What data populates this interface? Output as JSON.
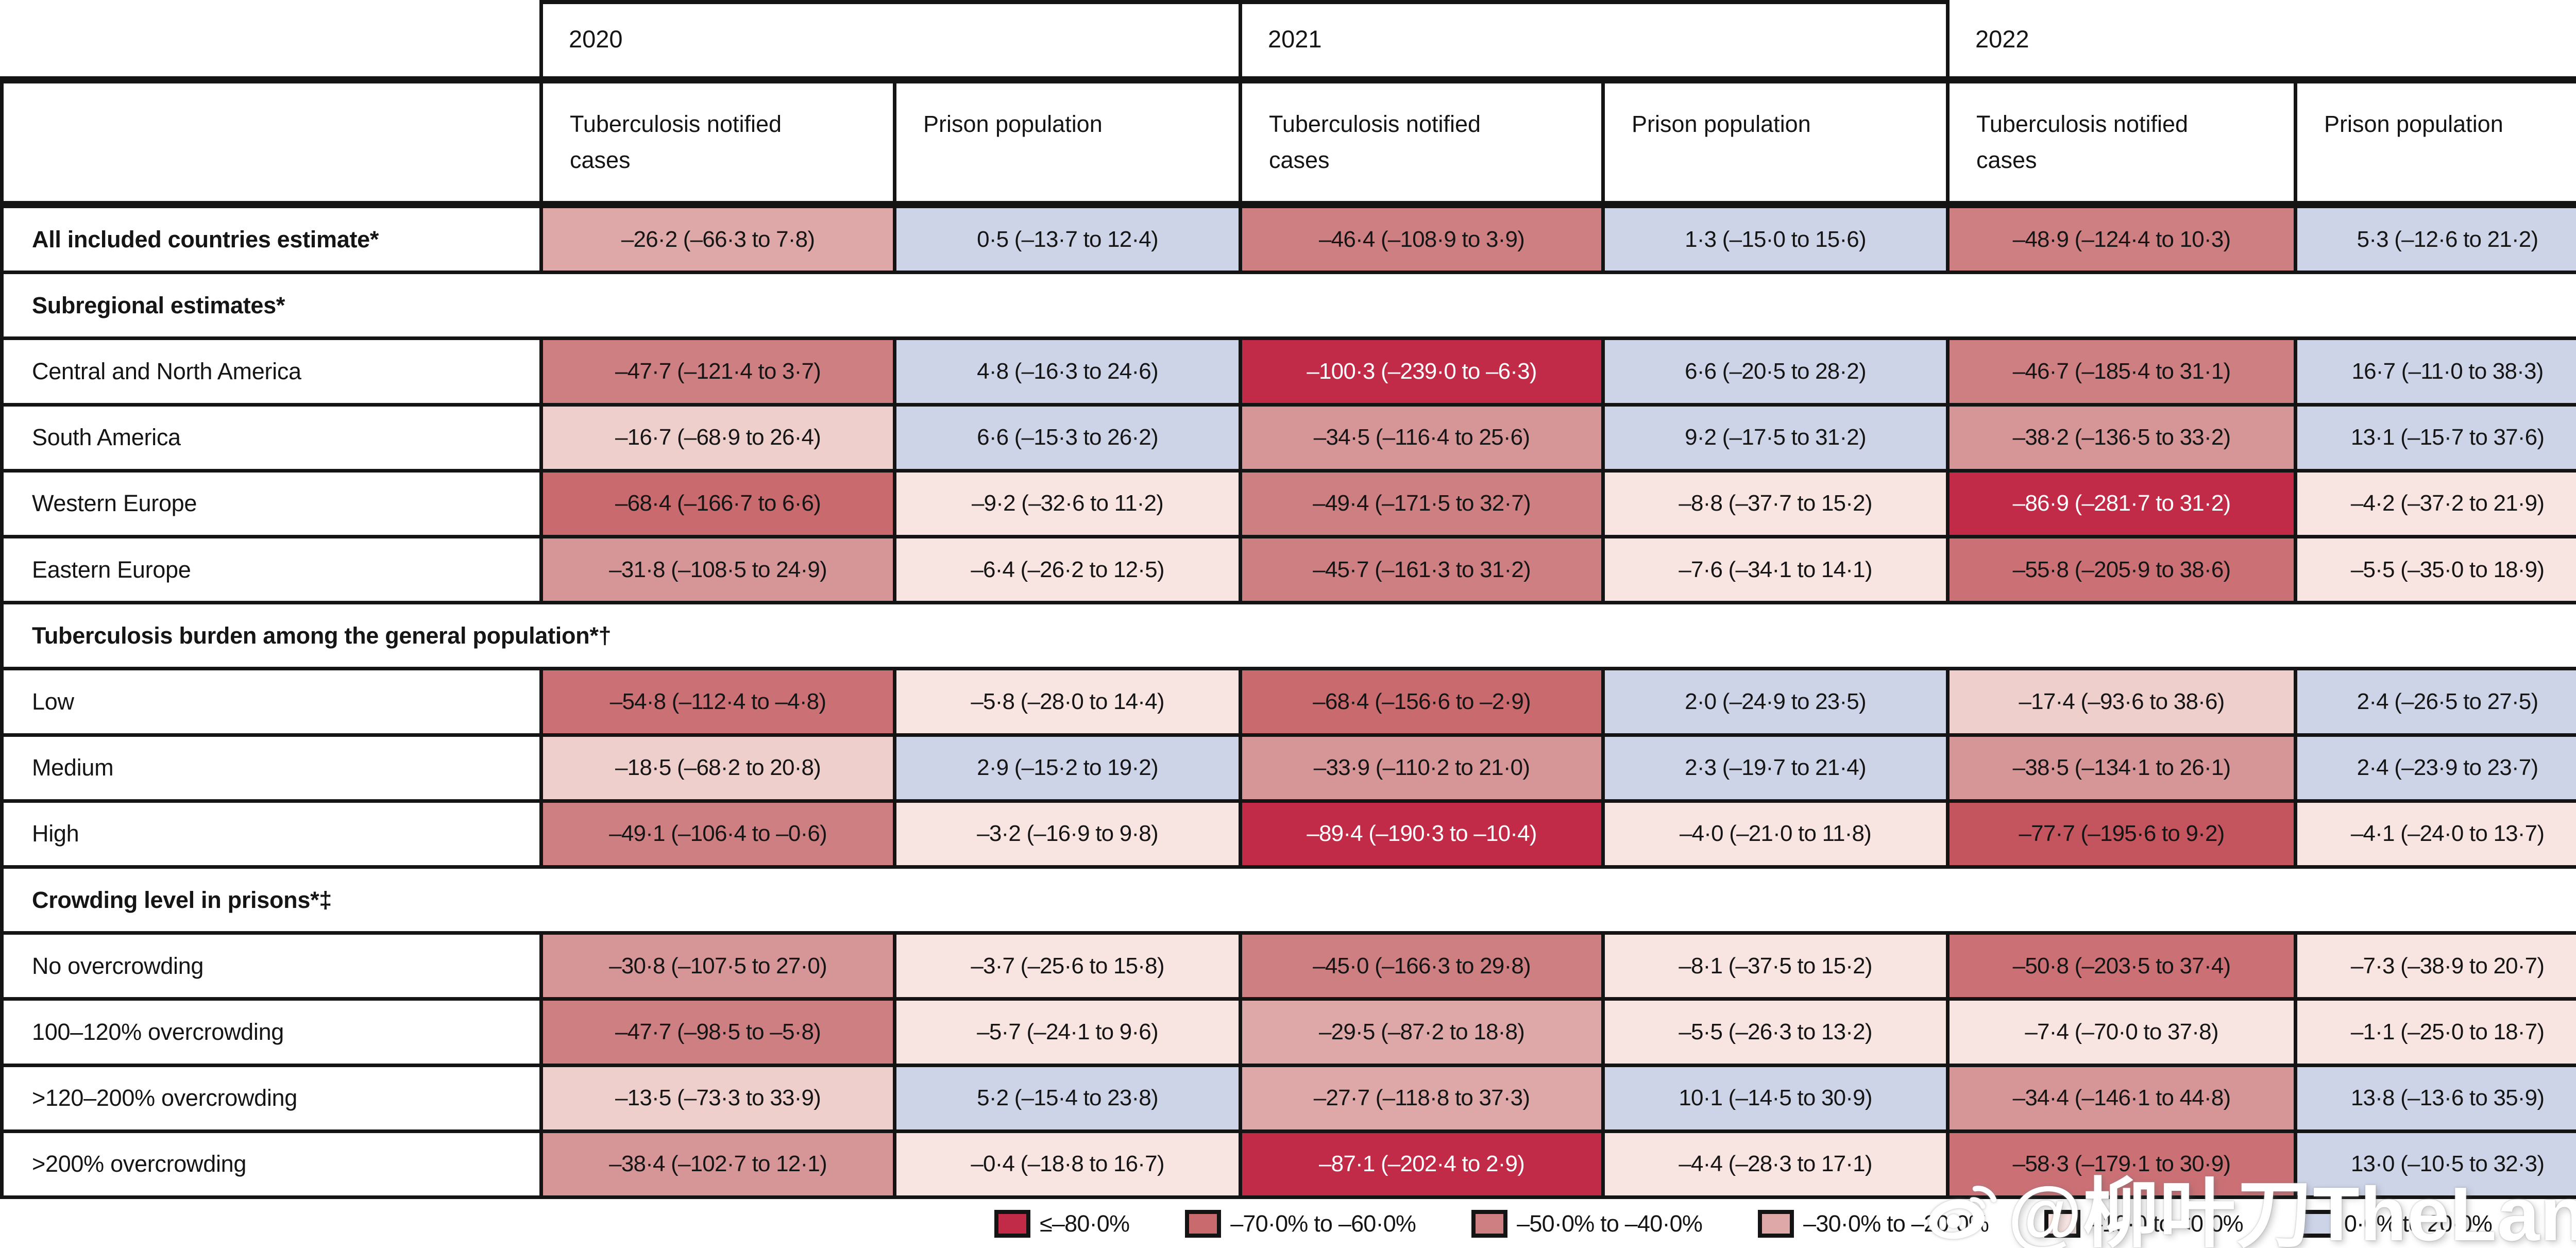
{
  "years": [
    "2020",
    "2021",
    "2022"
  ],
  "subheaders": [
    "Tuberculosis notified cases",
    "Prison population"
  ],
  "palette": {
    "m80": "#C22B47",
    "m75": "#C4545E",
    "m70": "#C96A6F",
    "m60": "#CB7176",
    "m50": "#CE7F82",
    "m40": "#D69698",
    "m30": "#DDA8A7",
    "m20": "#EFCFCC",
    "m10": "#F8E4E1",
    "blue": "#CDD4E8"
  },
  "rows": [
    {
      "type": "data",
      "label": "All included countries estimate*",
      "bold": true,
      "cells": [
        {
          "text": "–26·2 (–66·3 to 7·8)",
          "bin": "m30"
        },
        {
          "text": "0·5 (–13·7 to 12·4)",
          "bin": "blue"
        },
        {
          "text": "–46·4 (–108·9 to 3·9)",
          "bin": "m50"
        },
        {
          "text": "1·3 (–15·0 to 15·6)",
          "bin": "blue"
        },
        {
          "text": "–48·9 (–124·4 to 10·3)",
          "bin": "m50"
        },
        {
          "text": "5·3 (–12·6 to 21·2)",
          "bin": "blue"
        }
      ]
    },
    {
      "type": "section",
      "label": "Subregional estimates*"
    },
    {
      "type": "data",
      "label": "Central and North America",
      "bold": false,
      "cells": [
        {
          "text": "–47·7 (–121·4 to 3·7)",
          "bin": "m50"
        },
        {
          "text": "4·8 (–16·3 to 24·6)",
          "bin": "blue"
        },
        {
          "text": "–100·3 (–239·0 to –6·3)",
          "bin": "m80"
        },
        {
          "text": "6·6 (–20·5 to 28·2)",
          "bin": "blue"
        },
        {
          "text": "–46·7 (–185·4 to 31·1)",
          "bin": "m50"
        },
        {
          "text": "16·7 (–11·0 to 38·3)",
          "bin": "blue"
        }
      ]
    },
    {
      "type": "data",
      "label": "South America",
      "bold": false,
      "cells": [
        {
          "text": "–16·7 (–68·9 to 26·4)",
          "bin": "m20"
        },
        {
          "text": "6·6 (–15·3 to 26·2)",
          "bin": "blue"
        },
        {
          "text": "–34·5 (–116·4 to 25·6)",
          "bin": "m40"
        },
        {
          "text": "9·2 (–17·5 to 31·2)",
          "bin": "blue"
        },
        {
          "text": "–38·2 (–136·5 to 33·2)",
          "bin": "m40"
        },
        {
          "text": "13·1 (–15·7 to 37·6)",
          "bin": "blue"
        }
      ]
    },
    {
      "type": "data",
      "label": "Western Europe",
      "bold": false,
      "cells": [
        {
          "text": "–68·4 (–166·7 to 6·6)",
          "bin": "m70"
        },
        {
          "text": "–9·2 (–32·6 to 11·2)",
          "bin": "m10"
        },
        {
          "text": "–49·4 (–171·5 to 32·7)",
          "bin": "m50"
        },
        {
          "text": "–8·8 (–37·7 to 15·2)",
          "bin": "m10"
        },
        {
          "text": "–86·9 (–281·7 to 31·2)",
          "bin": "m80"
        },
        {
          "text": "–4·2 (–37·2 to 21·9)",
          "bin": "m10"
        }
      ]
    },
    {
      "type": "data",
      "label": "Eastern Europe",
      "bold": false,
      "cells": [
        {
          "text": "–31·8 (–108·5 to 24·9)",
          "bin": "m40"
        },
        {
          "text": "–6·4 (–26·2 to 12·5)",
          "bin": "m10"
        },
        {
          "text": "–45·7 (–161·3 to 31·2)",
          "bin": "m50"
        },
        {
          "text": "–7·6 (–34·1 to 14·1)",
          "bin": "m10"
        },
        {
          "text": "–55·8 (–205·9 to 38·6)",
          "bin": "m60"
        },
        {
          "text": "–5·5 (–35·0 to 18·9)",
          "bin": "m10"
        }
      ]
    },
    {
      "type": "section",
      "label": "Tuberculosis burden among the general population*†"
    },
    {
      "type": "data",
      "label": "Low",
      "bold": false,
      "cells": [
        {
          "text": "–54·8 (–112·4 to –4·8)",
          "bin": "m60"
        },
        {
          "text": "–5·8 (–28·0 to 14·4)",
          "bin": "m10"
        },
        {
          "text": "–68·4 (–156·6 to –2·9)",
          "bin": "m70"
        },
        {
          "text": "2·0 (–24·9 to 23·5)",
          "bin": "blue"
        },
        {
          "text": "–17·4 (–93·6 to 38·6)",
          "bin": "m20"
        },
        {
          "text": "2·4 (–26·5 to 27·5)",
          "bin": "blue"
        }
      ]
    },
    {
      "type": "data",
      "label": "Medium",
      "bold": false,
      "cells": [
        {
          "text": "–18·5 (–68·2 to 20·8)",
          "bin": "m20"
        },
        {
          "text": "2·9 (–15·2 to 19·2)",
          "bin": "blue"
        },
        {
          "text": "–33·9 (–110·2 to 21·0)",
          "bin": "m40"
        },
        {
          "text": "2·3 (–19·7 to 21·4)",
          "bin": "blue"
        },
        {
          "text": "–38·5 (–134·1 to 26·1)",
          "bin": "m40"
        },
        {
          "text": "2·4 (–23·9 to 23·7)",
          "bin": "blue"
        }
      ]
    },
    {
      "type": "data",
      "label": "High",
      "bold": false,
      "cells": [
        {
          "text": "–49·1 (–106·4 to –0·6)",
          "bin": "m50"
        },
        {
          "text": "–3·2 (–16·9 to 9·8)",
          "bin": "m10"
        },
        {
          "text": "–89·4 (–190·3 to –10·4)",
          "bin": "m80"
        },
        {
          "text": "–4·0 (–21·0 to 11·8)",
          "bin": "m10"
        },
        {
          "text": "–77·7 (–195·6 to 9·2)",
          "bin": "m75"
        },
        {
          "text": "–4·1 (–24·0 to 13·7)",
          "bin": "m10"
        }
      ]
    },
    {
      "type": "section",
      "label": "Crowding level in prisons*‡"
    },
    {
      "type": "data",
      "label": "No overcrowding",
      "bold": false,
      "cells": [
        {
          "text": "–30·8 (–107·5 to 27·0)",
          "bin": "m40"
        },
        {
          "text": "–3·7 (–25·6 to 15·8)",
          "bin": "m10"
        },
        {
          "text": "–45·0 (–166·3 to 29·8)",
          "bin": "m50"
        },
        {
          "text": "–8·1 (–37·5 to 15·2)",
          "bin": "m10"
        },
        {
          "text": "–50·8 (–203·5 to 37·4)",
          "bin": "m60"
        },
        {
          "text": "–7·3 (–38·9 to 20·7)",
          "bin": "m10"
        }
      ]
    },
    {
      "type": "data",
      "label": "100–120% overcrowding",
      "bold": false,
      "cells": [
        {
          "text": "–47·7 (–98·5 to –5·8)",
          "bin": "m50"
        },
        {
          "text": "–5·7 (–24·1 to 9·6)",
          "bin": "m10"
        },
        {
          "text": "–29·5 (–87·2 to 18·8)",
          "bin": "m30"
        },
        {
          "text": "–5·5 (–26·3 to 13·2)",
          "bin": "m10"
        },
        {
          "text": "–7·4 (–70·0 to 37·8)",
          "bin": "m10"
        },
        {
          "text": "–1·1 (–25·0 to 18·7)",
          "bin": "m10"
        }
      ]
    },
    {
      "type": "data",
      "label": ">120–200% overcrowding",
      "bold": false,
      "cells": [
        {
          "text": "–13·5 (–73·3 to 33·9)",
          "bin": "m20"
        },
        {
          "text": "5·2 (–15·4 to 23·8)",
          "bin": "blue"
        },
        {
          "text": "–27·7 (–118·8 to 37·3)",
          "bin": "m30"
        },
        {
          "text": "10·1 (–14·5 to 30·9)",
          "bin": "blue"
        },
        {
          "text": "–34·4 (–146·1 to 44·8)",
          "bin": "m40"
        },
        {
          "text": "13·8 (–13·6 to 35·9)",
          "bin": "blue"
        }
      ]
    },
    {
      "type": "data",
      "label": ">200% overcrowding",
      "bold": false,
      "cells": [
        {
          "text": "–38·4 (–102·7 to 12·1)",
          "bin": "m40"
        },
        {
          "text": "–0·4 (–18·8 to 16·7)",
          "bin": "m10"
        },
        {
          "text": "–87·1 (–202·4 to 2·9)",
          "bin": "m80"
        },
        {
          "text": "–4·4 (–28·3 to 17·1)",
          "bin": "m10"
        },
        {
          "text": "–58·3 (–179·1 to 30·9)",
          "bin": "m60"
        },
        {
          "text": "13·0 (–10·5 to 32·3)",
          "bin": "blue"
        }
      ]
    }
  ],
  "legend": {
    "items": [
      {
        "label": "≤–80·0%",
        "bin": "m80"
      },
      {
        "label": "–70·0% to –60·0%",
        "bin": "m70"
      },
      {
        "label": "–50·0% to –40·0%",
        "bin": "m50"
      },
      {
        "label": "–30·0% to –20·0%",
        "bin": "m30"
      },
      {
        "label": "–10·0 to <0·0%",
        "bin": "m10"
      },
      {
        "label": "0·0% to 20·0%",
        "bin": "blue"
      }
    ]
  },
  "watermark": {
    "text": "@柳叶刀TheLancet",
    "icon": "weibo-icon"
  },
  "chart_data": {
    "type": "heatmap",
    "columns": [
      "2020 Tuberculosis notified cases",
      "2020 Prison population",
      "2021 Tuberculosis notified cases",
      "2021 Prison population",
      "2022 Tuberculosis notified cases",
      "2022 Prison population"
    ],
    "row_groups": [
      {
        "name": "",
        "rows": [
          "All included countries estimate*"
        ]
      },
      {
        "name": "Subregional estimates*",
        "rows": [
          "Central and North America",
          "South America",
          "Western Europe",
          "Eastern Europe"
        ]
      },
      {
        "name": "Tuberculosis burden among the general population*†",
        "rows": [
          "Low",
          "Medium",
          "High"
        ]
      },
      {
        "name": "Crowding level in prisons*‡",
        "rows": [
          "No overcrowding",
          "100–120% overcrowding",
          ">120–200% overcrowding",
          ">200% overcrowding"
        ]
      }
    ],
    "rows": [
      "All included countries estimate*",
      "Central and North America",
      "South America",
      "Western Europe",
      "Eastern Europe",
      "Low",
      "Medium",
      "High",
      "No overcrowding",
      "100–120% overcrowding",
      ">120–200% overcrowding",
      ">200% overcrowding"
    ],
    "values": [
      [
        -26.2,
        0.5,
        -46.4,
        1.3,
        -48.9,
        5.3
      ],
      [
        -47.7,
        4.8,
        -100.3,
        6.6,
        -46.7,
        16.7
      ],
      [
        -16.7,
        6.6,
        -34.5,
        9.2,
        -38.2,
        13.1
      ],
      [
        -68.4,
        -9.2,
        -49.4,
        -8.8,
        -86.9,
        -4.2
      ],
      [
        -31.8,
        -6.4,
        -45.7,
        -7.6,
        -55.8,
        -5.5
      ],
      [
        -54.8,
        -5.8,
        -68.4,
        2.0,
        -17.4,
        2.4
      ],
      [
        -18.5,
        2.9,
        -33.9,
        2.3,
        -38.5,
        2.4
      ],
      [
        -49.1,
        -3.2,
        -89.4,
        -4.0,
        -77.7,
        -4.1
      ],
      [
        -30.8,
        -3.7,
        -45.0,
        -8.1,
        -50.8,
        -7.3
      ],
      [
        -47.7,
        -5.7,
        -29.5,
        -5.5,
        -7.4,
        -1.1
      ],
      [
        -13.5,
        5.2,
        -27.7,
        10.1,
        -34.4,
        13.8
      ],
      [
        -38.4,
        -0.4,
        -87.1,
        -4.4,
        -58.3,
        13.0
      ]
    ],
    "ci_low": [
      [
        -66.3,
        -13.7,
        -108.9,
        -15.0,
        -124.4,
        -12.6
      ],
      [
        -121.4,
        -16.3,
        -239.0,
        -20.5,
        -185.4,
        -11.0
      ],
      [
        -68.9,
        -15.3,
        -116.4,
        -17.5,
        -136.5,
        -15.7
      ],
      [
        -166.7,
        -32.6,
        -171.5,
        -37.7,
        -281.7,
        -37.2
      ],
      [
        -108.5,
        -26.2,
        -161.3,
        -34.1,
        -205.9,
        -35.0
      ],
      [
        -112.4,
        -28.0,
        -156.6,
        -24.9,
        -93.6,
        -26.5
      ],
      [
        -68.2,
        -15.2,
        -110.2,
        -19.7,
        -134.1,
        -23.9
      ],
      [
        -106.4,
        -16.9,
        -190.3,
        -21.0,
        -195.6,
        -24.0
      ],
      [
        -107.5,
        -25.6,
        -166.3,
        -37.5,
        -203.5,
        -38.9
      ],
      [
        -98.5,
        -24.1,
        -87.2,
        -26.3,
        -70.0,
        -25.0
      ],
      [
        -73.3,
        -15.4,
        -118.8,
        -14.5,
        -146.1,
        -13.6
      ],
      [
        -102.7,
        -18.8,
        -202.4,
        -28.3,
        -179.1,
        -10.5
      ]
    ],
    "ci_high": [
      [
        7.8,
        12.4,
        3.9,
        15.6,
        10.3,
        21.2
      ],
      [
        3.7,
        24.6,
        -6.3,
        28.2,
        31.1,
        38.3
      ],
      [
        26.4,
        26.2,
        25.6,
        31.2,
        33.2,
        37.6
      ],
      [
        6.6,
        11.2,
        32.7,
        15.2,
        31.2,
        21.9
      ],
      [
        24.9,
        12.5,
        31.2,
        14.1,
        38.6,
        18.9
      ],
      [
        -4.8,
        14.4,
        -2.9,
        23.5,
        38.6,
        27.5
      ],
      [
        20.8,
        19.2,
        21.0,
        21.4,
        26.1,
        23.7
      ],
      [
        -0.6,
        9.8,
        -10.4,
        11.8,
        9.2,
        13.7
      ],
      [
        27.0,
        15.8,
        29.8,
        15.2,
        37.4,
        20.7
      ],
      [
        -5.8,
        9.6,
        18.8,
        13.2,
        37.8,
        18.7
      ],
      [
        33.9,
        23.8,
        37.3,
        30.9,
        44.8,
        35.9
      ],
      [
        12.1,
        16.7,
        2.9,
        17.1,
        30.9,
        32.3
      ]
    ],
    "legend_bins": [
      "≤–80·0%",
      "–70·0% to –60·0%",
      "–50·0% to –40·0%",
      "–30·0% to –20·0%",
      "–10·0 to <0·0%",
      "0·0% to 20·0%"
    ],
    "legend_position": "bottom",
    "grid": "on"
  }
}
